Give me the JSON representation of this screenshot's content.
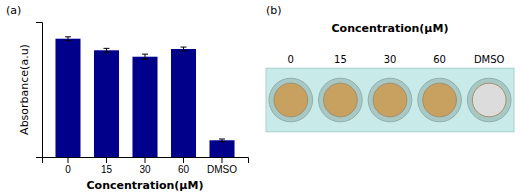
{
  "chart_data": [
    {
      "type": "bar",
      "title": "(a)",
      "categories": [
        "0",
        "15",
        "30",
        "60",
        "DMSO"
      ],
      "values": [
        0.92,
        0.83,
        0.78,
        0.84,
        0.13
      ],
      "errors": [
        0.015,
        0.015,
        0.02,
        0.015,
        0.01
      ],
      "color": "#00008B",
      "xlabel": "Concentration(μM)",
      "ylabel": "Absorbance(a.u)",
      "ylim": [
        0,
        1.05
      ],
      "yticks": [],
      "tick_labels": "x",
      "grid": false
    },
    {
      "type": "plate",
      "title": "(b)",
      "subtitle": "Concentration(μM)",
      "categories": [
        "0",
        "15",
        "30",
        "60",
        "DMSO"
      ],
      "colors": [
        "#C8A060",
        "#C8A060",
        "#C8A060",
        "#C8A060",
        "#DCDCDC"
      ]
    }
  ]
}
